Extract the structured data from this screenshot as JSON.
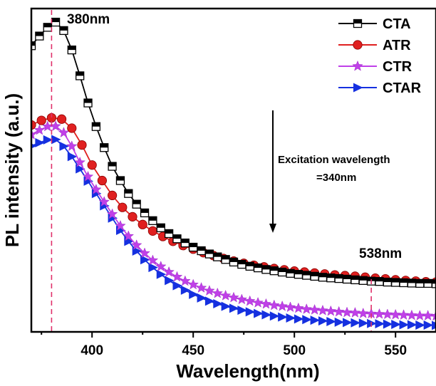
{
  "chart_data": {
    "type": "line",
    "xlabel": "Wavelength(nm)",
    "ylabel": "PL intensity (a.u.)",
    "xlim": [
      370,
      570
    ],
    "ylim": [
      0,
      100
    ],
    "x_ticks": [
      400,
      450,
      500,
      550
    ],
    "x_tick_labels": [
      "400",
      "450",
      "500",
      "550"
    ],
    "y_ticks_labeled": false,
    "grid": false,
    "legend_position": "top-right",
    "annotations": {
      "peak_label": "380nm",
      "peak_x": 380,
      "tail_label": "538nm",
      "tail_x": 538,
      "excitation_line1": "Excitation wavelength",
      "excitation_line2": "=340nm"
    },
    "series": [
      {
        "name": "CTA",
        "color": "#000000",
        "marker": "half-filled-square",
        "x": [
          370,
          374,
          378,
          382,
          386,
          390,
          394,
          398,
          402,
          406,
          410,
          414,
          418,
          422,
          426,
          430,
          434,
          438,
          442,
          446,
          450,
          454,
          458,
          462,
          466,
          470,
          474,
          478,
          482,
          486,
          490,
          494,
          498,
          502,
          506,
          510,
          514,
          518,
          522,
          526,
          530,
          534,
          538,
          542,
          546,
          550,
          554,
          558,
          562,
          566,
          570
        ],
        "values": [
          88.5,
          91.5,
          94.2,
          95.8,
          93.2,
          87.2,
          79.2,
          70.8,
          63.5,
          57.0,
          51.2,
          46.8,
          42.8,
          39.5,
          36.8,
          34.4,
          32.2,
          30.4,
          28.8,
          27.5,
          26.2,
          25.1,
          24.1,
          23.2,
          22.4,
          21.6,
          20.9,
          20.3,
          19.8,
          19.3,
          18.9,
          18.5,
          18.1,
          17.8,
          17.5,
          17.2,
          16.9,
          16.7,
          16.5,
          16.3,
          16.1,
          15.9,
          15.7,
          15.6,
          15.4,
          15.3,
          15.2,
          15.1,
          15.0,
          15.0,
          14.9
        ]
      },
      {
        "name": "ATR",
        "color": "#e02020",
        "marker": "circle",
        "x": [
          370,
          375,
          380,
          385,
          390,
          395,
          400,
          405,
          410,
          415,
          420,
          425,
          430,
          435,
          440,
          445,
          450,
          455,
          460,
          465,
          470,
          475,
          480,
          485,
          490,
          495,
          500,
          505,
          510,
          515,
          520,
          525,
          530,
          535,
          540,
          545,
          550,
          555,
          560,
          565,
          570
        ],
        "values": [
          64.0,
          65.4,
          66.2,
          65.8,
          63.0,
          57.8,
          51.6,
          46.8,
          42.2,
          38.5,
          35.6,
          33.2,
          31.2,
          29.5,
          28.0,
          26.7,
          25.6,
          24.5,
          23.6,
          22.7,
          21.9,
          21.2,
          20.6,
          20.1,
          19.6,
          19.2,
          18.8,
          18.5,
          18.2,
          17.9,
          17.6,
          17.4,
          17.2,
          16.9,
          16.6,
          16.4,
          16.1,
          15.9,
          15.7,
          15.5,
          15.4
        ]
      },
      {
        "name": "CTR",
        "color": "#c040e8",
        "marker": "star",
        "x": [
          370,
          374,
          378,
          382,
          386,
          390,
          394,
          398,
          402,
          406,
          410,
          414,
          418,
          422,
          426,
          430,
          434,
          438,
          442,
          446,
          450,
          454,
          458,
          462,
          466,
          470,
          474,
          478,
          482,
          486,
          490,
          494,
          498,
          502,
          506,
          510,
          514,
          518,
          522,
          526,
          530,
          534,
          538,
          542,
          546,
          550,
          554,
          558,
          562,
          566,
          570
        ],
        "values": [
          61.0,
          62.4,
          63.5,
          63.6,
          61.6,
          57.4,
          52.4,
          48.0,
          44.0,
          40.2,
          36.4,
          32.8,
          29.6,
          26.8,
          24.3,
          22.1,
          20.2,
          18.5,
          17.0,
          15.7,
          14.6,
          13.6,
          12.7,
          11.9,
          11.2,
          10.6,
          10.0,
          9.5,
          9.0,
          8.6,
          8.2,
          7.9,
          7.6,
          7.3,
          7.0,
          6.8,
          6.6,
          6.4,
          6.2,
          6.0,
          5.9,
          5.7,
          5.6,
          5.5,
          5.4,
          5.3,
          5.2,
          5.1,
          5.0,
          5.0,
          4.9
        ]
      },
      {
        "name": "CTAR",
        "color": "#1530e0",
        "marker": "right-triangle",
        "x": [
          370,
          374,
          378,
          382,
          386,
          390,
          394,
          398,
          402,
          406,
          410,
          414,
          418,
          422,
          426,
          430,
          434,
          438,
          442,
          446,
          450,
          454,
          458,
          462,
          466,
          470,
          474,
          478,
          482,
          486,
          490,
          494,
          498,
          502,
          506,
          510,
          514,
          518,
          522,
          526,
          530,
          534,
          538,
          542,
          546,
          550,
          554,
          558,
          562,
          566,
          570
        ],
        "values": [
          57.5,
          58.5,
          59.4,
          59.5,
          57.4,
          54.2,
          50.4,
          46.6,
          42.8,
          39.0,
          35.2,
          31.4,
          28.0,
          25.0,
          22.3,
          19.9,
          17.8,
          15.9,
          14.3,
          12.9,
          11.6,
          10.5,
          9.5,
          8.7,
          7.9,
          7.3,
          6.7,
          6.2,
          5.7,
          5.3,
          4.9,
          4.6,
          4.3,
          4.0,
          3.8,
          3.6,
          3.4,
          3.2,
          3.0,
          2.9,
          2.8,
          2.7,
          2.6,
          2.5,
          2.4,
          2.3,
          2.2,
          2.2,
          2.1,
          2.1,
          2.0
        ]
      }
    ]
  }
}
